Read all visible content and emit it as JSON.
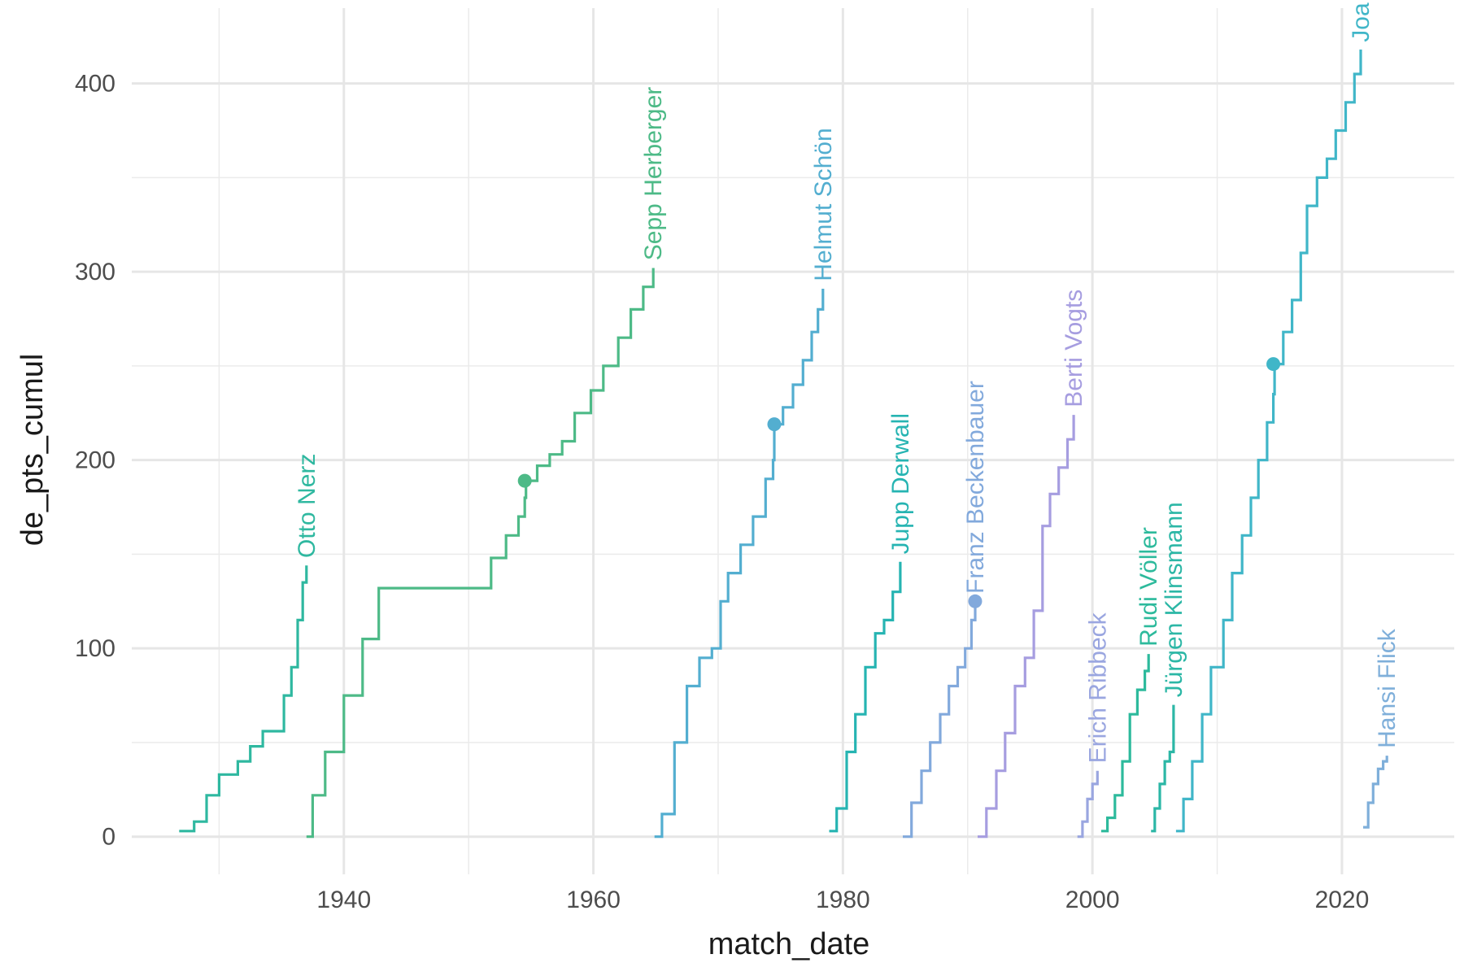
{
  "chart_data": {
    "type": "line",
    "xlabel": "match_date",
    "ylabel": "de_pts_cumul",
    "xlim": [
      1923,
      2029
    ],
    "ylim": [
      -20,
      440
    ],
    "x_ticks": [
      1940,
      1960,
      1980,
      2000,
      2020
    ],
    "x_tick_labels": [
      "1940",
      "1960",
      "1980",
      "2000",
      "2020"
    ],
    "y_ticks": [
      0,
      100,
      200,
      300,
      400
    ],
    "y_tick_labels": [
      "0",
      "100",
      "200",
      "300",
      "400"
    ],
    "x_minor_ticks": [
      1930,
      1950,
      1970,
      1990,
      2010
    ],
    "y_minor_ticks": [
      50,
      150,
      250,
      350
    ],
    "grid": true,
    "legend": "none",
    "series": [
      {
        "name": "Otto Nerz",
        "color": "#2fb8a0",
        "x": [
          1926.8,
          1928.0,
          1929.0,
          1930.0,
          1931.5,
          1932.5,
          1933.5,
          1934.5,
          1935.2,
          1935.8,
          1936.3,
          1936.7,
          1937.0
        ],
        "y": [
          3,
          8,
          22,
          33,
          40,
          48,
          56,
          56,
          75,
          90,
          115,
          135,
          144
        ]
      },
      {
        "name": "Sepp Herberger",
        "color": "#4dba87",
        "x": [
          1937.0,
          1937.5,
          1938.5,
          1940.0,
          1941.5,
          1942.8,
          1947.0,
          1950.8,
          1951.8,
          1953.0,
          1954.0,
          1954.5,
          1954.6,
          1955.5,
          1956.5,
          1957.5,
          1958.5,
          1959.8,
          1960.8,
          1962.0,
          1963.0,
          1964.0,
          1964.8
        ],
        "y": [
          0,
          22,
          45,
          75,
          105,
          132,
          132,
          132,
          148,
          160,
          170,
          180,
          189,
          197,
          203,
          210,
          225,
          237,
          250,
          265,
          280,
          292,
          302
        ]
      },
      {
        "name": "Helmut Schön",
        "color": "#53aed0",
        "x": [
          1964.9,
          1965.5,
          1966.5,
          1967.5,
          1968.5,
          1969.5,
          1970.2,
          1970.8,
          1971.8,
          1972.8,
          1973.8,
          1974.4,
          1974.5,
          1975.2,
          1976.0,
          1976.8,
          1977.5,
          1978.0,
          1978.4
        ],
        "y": [
          0,
          12,
          50,
          80,
          95,
          100,
          125,
          140,
          155,
          170,
          190,
          200,
          219,
          228,
          240,
          253,
          268,
          280,
          291
        ]
      },
      {
        "name": "Jupp Derwall",
        "color": "#26b4b2",
        "x": [
          1978.9,
          1979.5,
          1980.3,
          1981.0,
          1981.8,
          1982.6,
          1983.3,
          1984.0,
          1984.6
        ],
        "y": [
          3,
          15,
          45,
          65,
          90,
          108,
          115,
          130,
          146
        ]
      },
      {
        "name": "Franz Beckenbauer",
        "color": "#82a9dc",
        "x": [
          1984.8,
          1985.5,
          1986.3,
          1987.0,
          1987.8,
          1988.5,
          1989.2,
          1989.8,
          1990.3,
          1990.6
        ],
        "y": [
          0,
          18,
          35,
          50,
          65,
          80,
          90,
          100,
          115,
          125
        ]
      },
      {
        "name": "Berti Vogts",
        "color": "#a69de0",
        "x": [
          1990.8,
          1991.5,
          1992.3,
          1993.0,
          1993.8,
          1994.6,
          1995.3,
          1996.0,
          1996.6,
          1997.3,
          1998.0,
          1998.5
        ],
        "y": [
          0,
          15,
          35,
          55,
          80,
          95,
          120,
          165,
          182,
          196,
          211,
          224
        ]
      },
      {
        "name": "Erich Ribbeck",
        "color": "#9aa6e0",
        "x": [
          1998.8,
          1999.2,
          1999.6,
          2000.0,
          2000.4
        ],
        "y": [
          0,
          8,
          20,
          28,
          35
        ]
      },
      {
        "name": "Rudi Völler",
        "color": "#2dba9c",
        "x": [
          2000.7,
          2001.2,
          2001.8,
          2002.4,
          2003.0,
          2003.6,
          2004.2,
          2004.5
        ],
        "y": [
          3,
          10,
          22,
          40,
          65,
          78,
          88,
          97
        ]
      },
      {
        "name": "Jürgen Klinsmann",
        "color": "#2cb7a6",
        "x": [
          2004.7,
          2005.0,
          2005.4,
          2005.8,
          2006.2,
          2006.5
        ],
        "y": [
          3,
          15,
          28,
          40,
          45,
          70
        ]
      },
      {
        "name": "Joachim Löw",
        "color": "#40b6c8",
        "x": [
          2006.7,
          2007.3,
          2008.0,
          2008.8,
          2009.5,
          2010.5,
          2011.2,
          2012.0,
          2012.7,
          2013.3,
          2014.0,
          2014.5,
          2014.6,
          2015.3,
          2016.0,
          2016.7,
          2017.2,
          2018.0,
          2018.8,
          2019.5,
          2020.3,
          2021.0,
          2021.5
        ],
        "y": [
          3,
          20,
          40,
          65,
          90,
          115,
          140,
          160,
          180,
          200,
          220,
          235,
          251,
          268,
          285,
          310,
          335,
          350,
          360,
          375,
          390,
          405,
          418
        ]
      },
      {
        "name": "Hansi Flick",
        "color": "#7fafda",
        "x": [
          2021.7,
          2022.1,
          2022.5,
          2022.9,
          2023.3,
          2023.6
        ],
        "y": [
          5,
          18,
          28,
          36,
          40,
          43
        ]
      }
    ],
    "markers": [
      {
        "x": 1954.5,
        "y": 189,
        "color": "#4dba87"
      },
      {
        "x": 1974.5,
        "y": 219,
        "color": "#53aed0"
      },
      {
        "x": 1990.6,
        "y": 125,
        "color": "#82a9dc"
      },
      {
        "x": 2014.5,
        "y": 251,
        "color": "#40b6c8"
      }
    ],
    "series_labels": [
      {
        "text": "Otto Nerz",
        "x": 1937.0,
        "y": 148,
        "color": "#2fb8a0"
      },
      {
        "text": "Sepp Herberger",
        "x": 1964.8,
        "y": 306,
        "color": "#4dba87"
      },
      {
        "text": "Helmut Schön",
        "x": 1978.4,
        "y": 295,
        "color": "#53aed0"
      },
      {
        "text": "Jupp Derwall",
        "x": 1984.6,
        "y": 150,
        "color": "#26b4b2"
      },
      {
        "text": "Franz Beckenbauer",
        "x": 1990.6,
        "y": 129,
        "color": "#82a9dc"
      },
      {
        "text": "Berti Vogts",
        "x": 1998.5,
        "y": 228,
        "color": "#a69de0"
      },
      {
        "text": "Erich Ribbeck",
        "x": 2000.4,
        "y": 39,
        "color": "#9aa6e0"
      },
      {
        "text": "Rudi Völler",
        "x": 2004.5,
        "y": 101,
        "color": "#2dba9c"
      },
      {
        "text": "Jürgen Klinsmann",
        "x": 2006.5,
        "y": 74,
        "color": "#2cb7a6"
      },
      {
        "text": "Joa",
        "x": 2021.5,
        "y": 422,
        "color": "#40b6c8"
      },
      {
        "text": "Hansi Flick",
        "x": 2023.6,
        "y": 47,
        "color": "#7fafda"
      }
    ]
  }
}
